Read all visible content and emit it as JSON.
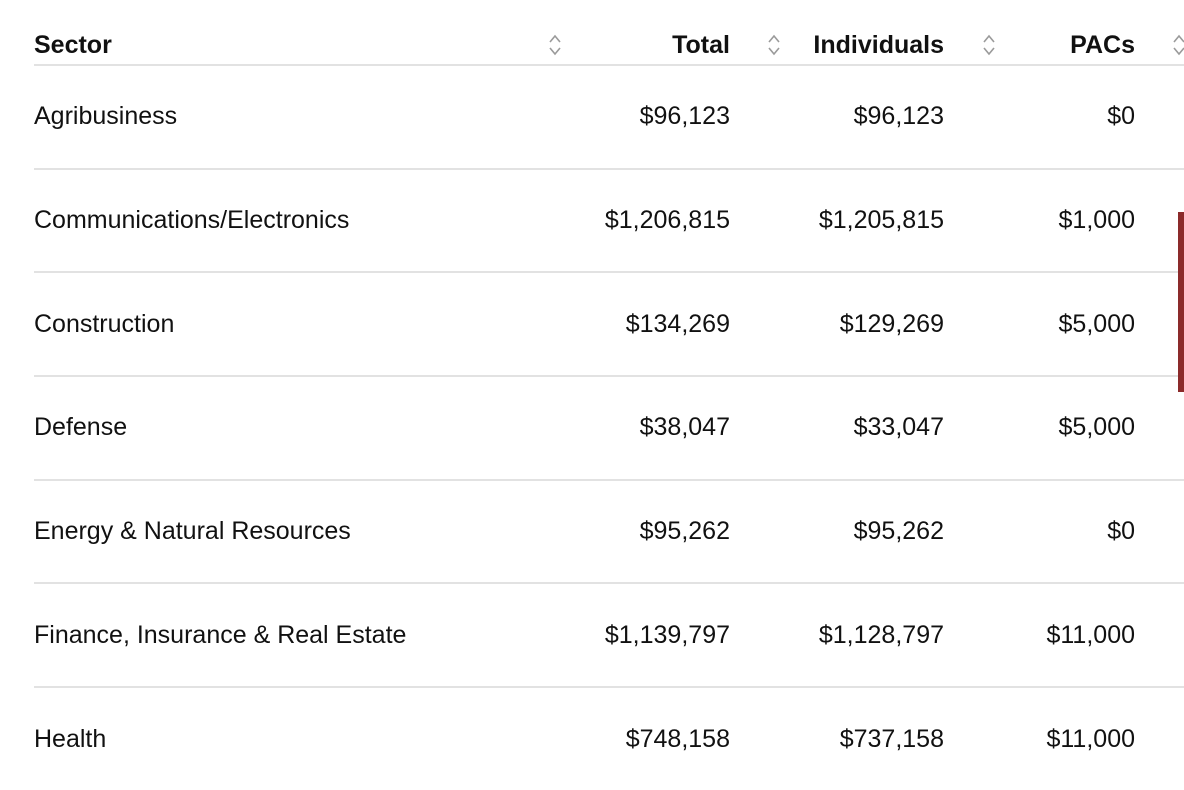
{
  "table": {
    "columns": [
      {
        "label": "Sector",
        "sortable": true
      },
      {
        "label": "Total",
        "sortable": true
      },
      {
        "label": "Individuals",
        "sortable": true
      },
      {
        "label": "PACs",
        "sortable": true
      }
    ],
    "rows": [
      {
        "sector": "Agribusiness",
        "total": "$96,123",
        "individuals": "$96,123",
        "pacs": "$0"
      },
      {
        "sector": "Communications/Electronics",
        "total": "$1,206,815",
        "individuals": "$1,205,815",
        "pacs": "$1,000"
      },
      {
        "sector": "Construction",
        "total": "$134,269",
        "individuals": "$129,269",
        "pacs": "$5,000"
      },
      {
        "sector": "Defense",
        "total": "$38,047",
        "individuals": "$33,047",
        "pacs": "$5,000"
      },
      {
        "sector": "Energy & Natural Resources",
        "total": "$95,262",
        "individuals": "$95,262",
        "pacs": "$0"
      },
      {
        "sector": "Finance, Insurance & Real Estate",
        "total": "$1,139,797",
        "individuals": "$1,128,797",
        "pacs": "$11,000"
      },
      {
        "sector": "Health",
        "total": "$748,158",
        "individuals": "$737,158",
        "pacs": "$11,000"
      }
    ]
  },
  "colors": {
    "text": "#111111",
    "divider": "#e2e2e2",
    "sort_icon": "#9a9a9a",
    "scroll_indicator": "#8b2a2a"
  },
  "icons": {
    "sort": "sort-updown-icon"
  }
}
